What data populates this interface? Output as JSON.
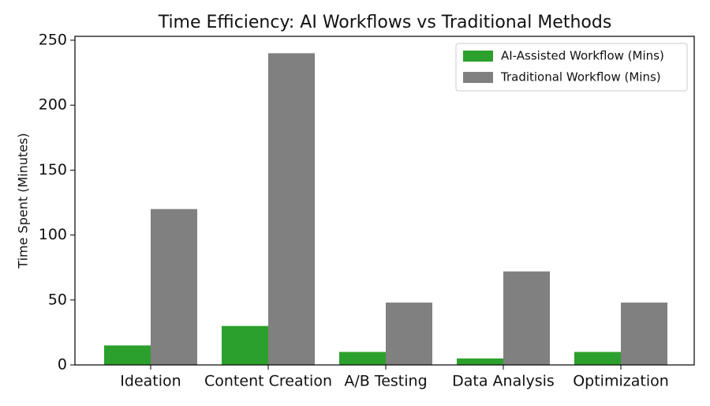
{
  "chart_data": {
    "type": "bar",
    "title": "Time Efficiency: AI Workflows vs Traditional Methods",
    "y_label": "Time Spent (Minutes)",
    "categories": [
      "Ideation",
      "Content Creation",
      "A/B Testing",
      "Data Analysis",
      "Optimization"
    ],
    "series": [
      {
        "name": "AI-Assisted Workflow (Mins)",
        "color": "#2ca02c",
        "values": [
          15,
          30,
          10,
          5,
          10
        ]
      },
      {
        "name": "Traditional Workflow (Mins)",
        "color": "#808080",
        "values": [
          120,
          240,
          48,
          72,
          48
        ]
      }
    ],
    "ylim": [
      0,
      253
    ],
    "yticks": [
      0,
      50,
      100,
      150,
      200,
      250
    ],
    "grid": false,
    "legend": "upper right"
  }
}
